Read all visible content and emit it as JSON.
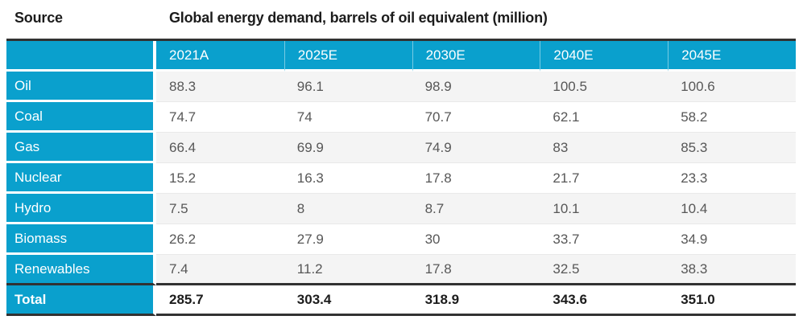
{
  "header": {
    "source_label": "Source",
    "title": "Global energy demand, barrels of oil equivalent (million)"
  },
  "table": {
    "columns": [
      "2021A",
      "2025E",
      "2030E",
      "2040E",
      "2045E"
    ],
    "rows": [
      {
        "label": "Oil",
        "values": [
          "88.3",
          "96.1",
          "98.9",
          "100.5",
          "100.6"
        ]
      },
      {
        "label": "Coal",
        "values": [
          "74.7",
          "74",
          "70.7",
          "62.1",
          "58.2"
        ]
      },
      {
        "label": "Gas",
        "values": [
          "66.4",
          "69.9",
          "74.9",
          "83",
          "85.3"
        ]
      },
      {
        "label": "Nuclear",
        "values": [
          "15.2",
          "16.3",
          "17.8",
          "21.7",
          "23.3"
        ]
      },
      {
        "label": "Hydro",
        "values": [
          "7.5",
          "8",
          "8.7",
          "10.1",
          "10.4"
        ]
      },
      {
        "label": "Biomass",
        "values": [
          "26.2",
          "27.9",
          "30",
          "33.7",
          "34.9"
        ]
      },
      {
        "label": "Renewables",
        "values": [
          "7.4",
          "11.2",
          "17.8",
          "32.5",
          "38.3"
        ]
      }
    ],
    "total": {
      "label": "Total",
      "values": [
        "285.7",
        "303.4",
        "318.9",
        "343.6",
        "351.0"
      ]
    }
  },
  "colors": {
    "accent": "#0aa0cd",
    "row_alt": "#f4f4f4",
    "row_divider": "#e9e9e9",
    "dark_rule": "#323232",
    "title_text": "#1c1c1c",
    "data_text": "#575757",
    "header_text": "#ffffff"
  },
  "chart_data": {
    "type": "table",
    "title": "Global energy demand, barrels of oil equivalent (million)",
    "row_header": "Source",
    "columns": [
      "2021A",
      "2025E",
      "2030E",
      "2040E",
      "2045E"
    ],
    "series": [
      {
        "name": "Oil",
        "values": [
          88.3,
          96.1,
          98.9,
          100.5,
          100.6
        ]
      },
      {
        "name": "Coal",
        "values": [
          74.7,
          74,
          70.7,
          62.1,
          58.2
        ]
      },
      {
        "name": "Gas",
        "values": [
          66.4,
          69.9,
          74.9,
          83,
          85.3
        ]
      },
      {
        "name": "Nuclear",
        "values": [
          15.2,
          16.3,
          17.8,
          21.7,
          23.3
        ]
      },
      {
        "name": "Hydro",
        "values": [
          7.5,
          8,
          8.7,
          10.1,
          10.4
        ]
      },
      {
        "name": "Biomass",
        "values": [
          26.2,
          27.9,
          30,
          33.7,
          34.9
        ]
      },
      {
        "name": "Renewables",
        "values": [
          7.4,
          11.2,
          17.8,
          32.5,
          38.3
        ]
      },
      {
        "name": "Total",
        "values": [
          285.7,
          303.4,
          318.9,
          343.6,
          351.0
        ]
      }
    ]
  }
}
